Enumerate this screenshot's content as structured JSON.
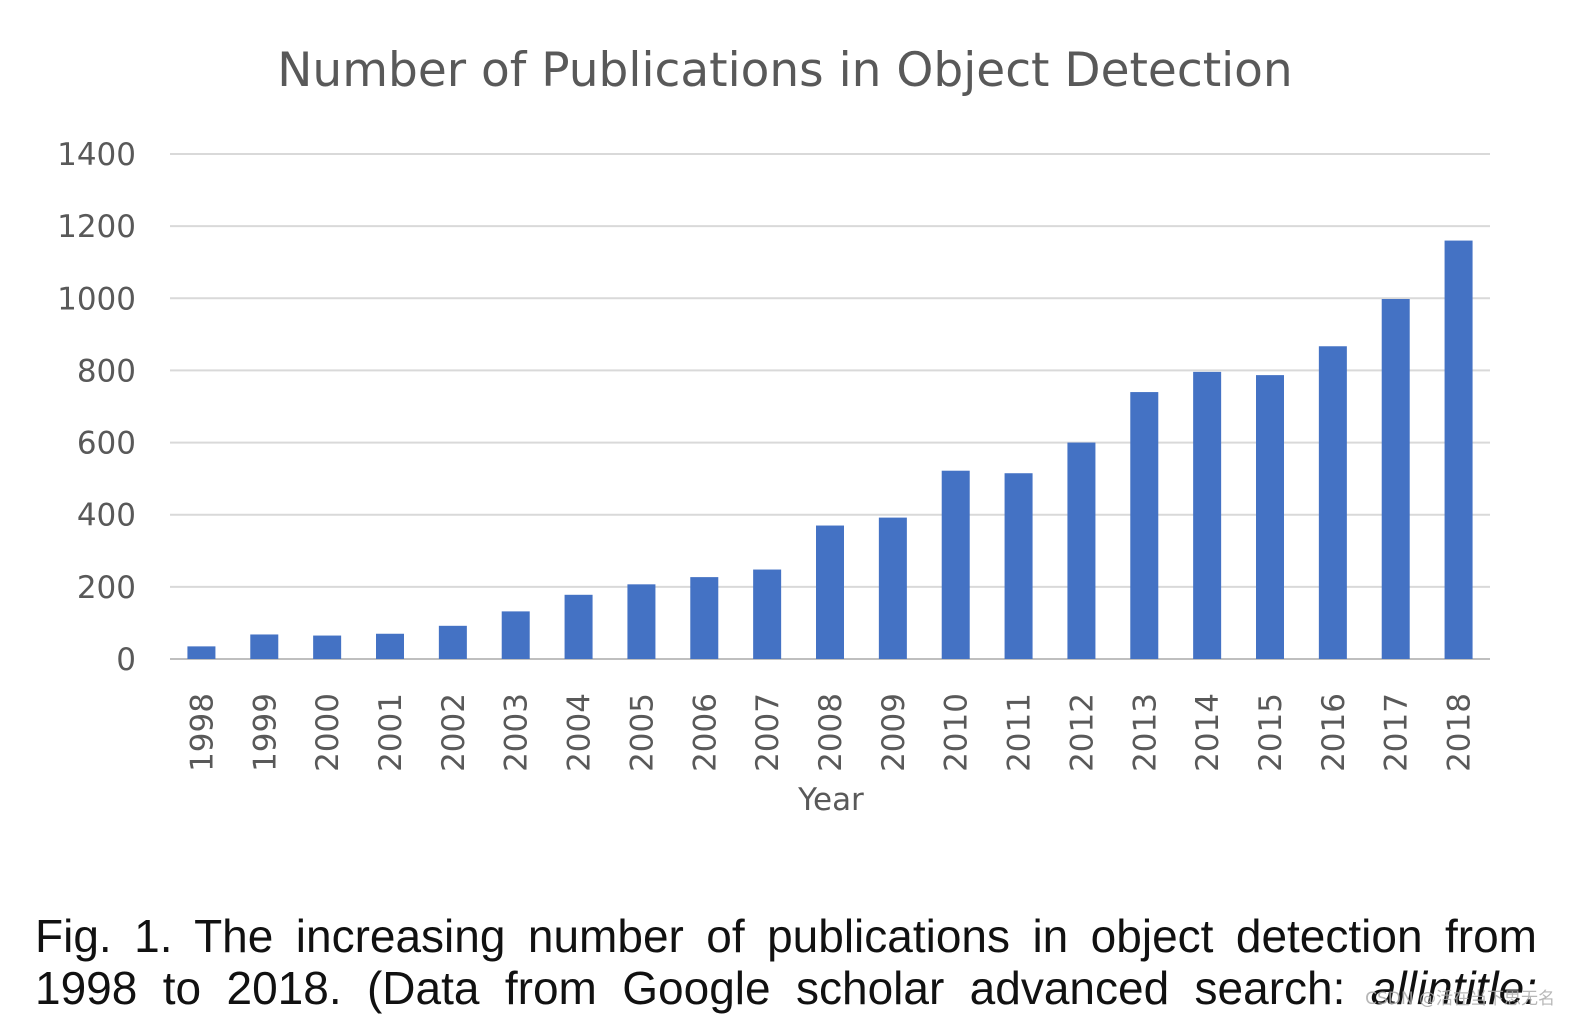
{
  "chart_data": {
    "type": "bar",
    "title": "Number of Publications in Object Detection",
    "xlabel": "Year",
    "ylabel": "",
    "ylim": [
      0,
      1400
    ],
    "yticks": [
      "0",
      "200",
      "400",
      "600",
      "800",
      "1000",
      "1200",
      "1400"
    ],
    "grid": true,
    "legend": "none",
    "bar_color": "#4472C4",
    "categories": [
      "1998",
      "1999",
      "2000",
      "2001",
      "2002",
      "2003",
      "2004",
      "2005",
      "2006",
      "2007",
      "2008",
      "2009",
      "2010",
      "2011",
      "2012",
      "2013",
      "2014",
      "2015",
      "2016",
      "2017",
      "2018"
    ],
    "values": [
      35,
      68,
      65,
      70,
      92,
      132,
      178,
      207,
      227,
      248,
      370,
      392,
      522,
      515,
      600,
      740,
      796,
      787,
      867,
      998,
      1160
    ]
  },
  "caption": {
    "line1": "Fig. 1.  The increasing number of publications in object detection from",
    "line2_plain": "1998 to 2018.  (Data from Google scholar advanced search: ",
    "line2_italic": "allintitle:"
  },
  "watermark": "CSDN @活在当下思无名"
}
